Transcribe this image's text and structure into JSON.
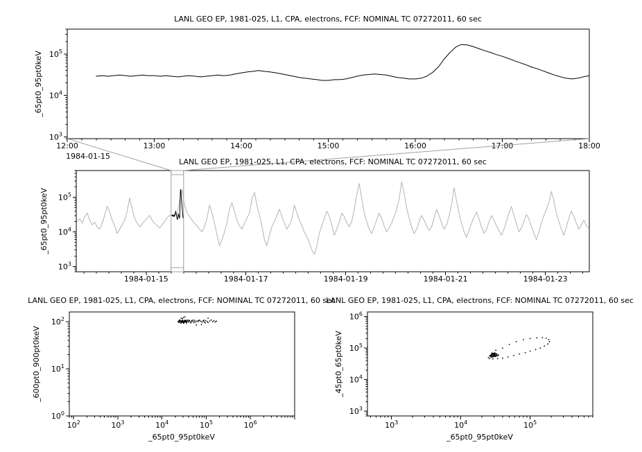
{
  "figure": {
    "background": "#ffffff",
    "foreground": "#000000",
    "context_line_color": "#b3b3b3",
    "zoom_box_color": "#a0a0a0"
  },
  "chart_data": [
    {
      "id": "top",
      "type": "line",
      "title": "LANL GEO EP, 1981-025, L1, CPA, electrons, FCF: NOMINAL TC 07272011, 60 sec",
      "ylabel": "_65pt0_95pt0keV",
      "xlabel": "",
      "x_axis": {
        "type": "linear",
        "range": [
          12,
          18
        ],
        "minor_step": 0.16667,
        "context_label": "1984-01-15",
        "ticks": [
          {
            "v": 12,
            "label": "12:00"
          },
          {
            "v": 13,
            "label": "13:00"
          },
          {
            "v": 14,
            "label": "14:00"
          },
          {
            "v": 15,
            "label": "15:00"
          },
          {
            "v": 16,
            "label": "16:00"
          },
          {
            "v": 17,
            "label": "17:00"
          },
          {
            "v": 18,
            "label": "18:00"
          }
        ]
      },
      "y_axis": {
        "type": "log",
        "range": [
          900,
          400000
        ],
        "ticks": [
          1000,
          10000,
          100000
        ]
      },
      "series": [
        {
          "name": "zoom-series",
          "color": "#000000",
          "x": [
            12.33,
            12.4,
            12.47,
            12.53,
            12.6,
            12.67,
            12.73,
            12.8,
            12.87,
            12.93,
            13.0,
            13.07,
            13.13,
            13.2,
            13.27,
            13.33,
            13.4,
            13.47,
            13.53,
            13.6,
            13.67,
            13.73,
            13.8,
            13.87,
            13.93,
            14.0,
            14.07,
            14.13,
            14.2,
            14.27,
            14.33,
            14.4,
            14.47,
            14.53,
            14.6,
            14.67,
            14.73,
            14.8,
            14.87,
            14.93,
            15.0,
            15.07,
            15.13,
            15.2,
            15.27,
            15.33,
            15.4,
            15.47,
            15.53,
            15.6,
            15.67,
            15.73,
            15.8,
            15.87,
            15.93,
            16.0,
            16.07,
            16.13,
            16.2,
            16.27,
            16.33,
            16.4,
            16.47,
            16.53,
            16.6,
            16.67,
            16.73,
            16.8,
            16.87,
            16.93,
            17.0,
            17.07,
            17.13,
            17.2,
            17.27,
            17.33,
            17.4,
            17.47,
            17.53,
            17.6,
            17.67,
            17.73,
            17.8,
            17.87,
            17.93,
            18.0
          ],
          "y": [
            29000,
            30000,
            29000,
            30000,
            31000,
            30000,
            29000,
            30000,
            31000,
            30000,
            30000,
            29000,
            30000,
            29000,
            28000,
            29000,
            30000,
            29000,
            28000,
            29000,
            30000,
            31000,
            30000,
            31000,
            33000,
            35000,
            37000,
            38000,
            40000,
            38000,
            37000,
            35000,
            33000,
            31000,
            29000,
            27000,
            26000,
            25000,
            24000,
            23000,
            23000,
            24000,
            24000,
            25000,
            27000,
            29000,
            31000,
            32000,
            33000,
            32000,
            31000,
            29000,
            27000,
            26000,
            25000,
            25000,
            26000,
            29000,
            36000,
            50000,
            75000,
            110000,
            150000,
            170000,
            165000,
            150000,
            135000,
            120000,
            108000,
            97000,
            88000,
            78000,
            70000,
            62000,
            55000,
            49000,
            44000,
            39000,
            35000,
            31000,
            28000,
            26000,
            25000,
            26000,
            28000,
            30000
          ]
        }
      ]
    },
    {
      "id": "context",
      "type": "line",
      "title": "LANL GEO EP, 1981-025, L1, CPA, electrons, FCF: NOMINAL TC 07272011, 60 sec",
      "ylabel": "_65pt0_95pt0keV",
      "xlabel": "",
      "x_axis": {
        "type": "linear",
        "range": [
          13.6,
          23.88
        ],
        "minor_step": 0.25,
        "ticks": [
          {
            "v": 15,
            "label": "1984-01-15"
          },
          {
            "v": 17,
            "label": "1984-01-17"
          },
          {
            "v": 19,
            "label": "1984-01-19"
          },
          {
            "v": 21,
            "label": "1984-01-21"
          },
          {
            "v": 23,
            "label": "1984-01-23"
          }
        ]
      },
      "y_axis": {
        "type": "log",
        "range": [
          700,
          600000
        ],
        "ticks": [
          1000,
          10000,
          100000
        ]
      },
      "zoom_box": {
        "x_range": [
          15.5,
          15.75
        ]
      },
      "series": [
        {
          "name": "context-series",
          "color": "#b3b3b3",
          "x_start": 13.62,
          "x_step": 0.05,
          "y": [
            20000,
            24000,
            18000,
            28000,
            35000,
            22000,
            16000,
            19000,
            14000,
            12000,
            18000,
            30000,
            55000,
            38000,
            22000,
            15000,
            9000,
            12000,
            16000,
            22000,
            40000,
            95000,
            45000,
            25000,
            18000,
            14000,
            17000,
            21000,
            25000,
            30000,
            22000,
            18000,
            15000,
            13000,
            16000,
            20000,
            26000,
            30000,
            30000,
            33000,
            31000,
            80000,
            170000,
            60000,
            35000,
            28000,
            22000,
            18000,
            15000,
            12000,
            10000,
            14000,
            25000,
            60000,
            35000,
            18000,
            8000,
            4000,
            6000,
            10000,
            18000,
            45000,
            70000,
            40000,
            22000,
            15000,
            12000,
            18000,
            25000,
            35000,
            90000,
            140000,
            60000,
            30000,
            15000,
            6000,
            4000,
            8000,
            14000,
            20000,
            30000,
            45000,
            28000,
            18000,
            12000,
            16000,
            24000,
            60000,
            35000,
            22000,
            15000,
            10000,
            7000,
            5000,
            3000,
            2200,
            4000,
            9000,
            15000,
            25000,
            40000,
            28000,
            16000,
            8000,
            12000,
            20000,
            35000,
            28000,
            18000,
            14000,
            20000,
            45000,
            120000,
            250000,
            90000,
            35000,
            20000,
            12000,
            9000,
            14000,
            22000,
            35000,
            25000,
            15000,
            10000,
            13000,
            18000,
            28000,
            45000,
            90000,
            280000,
            130000,
            50000,
            25000,
            14000,
            9000,
            12000,
            20000,
            30000,
            22000,
            15000,
            11000,
            14000,
            25000,
            45000,
            30000,
            18000,
            12000,
            16000,
            28000,
            60000,
            190000,
            80000,
            35000,
            18000,
            10000,
            7000,
            11000,
            18000,
            26000,
            38000,
            24000,
            14000,
            9000,
            12000,
            19000,
            30000,
            22000,
            15000,
            11000,
            8000,
            12000,
            20000,
            35000,
            55000,
            30000,
            17000,
            10000,
            13000,
            20000,
            32000,
            24000,
            14000,
            9000,
            6000,
            10000,
            18000,
            30000,
            45000,
            70000,
            150000,
            80000,
            35000,
            20000,
            12000,
            8000,
            14000,
            25000,
            40000,
            28000,
            18000,
            12000,
            16000,
            22000,
            15000,
            13000
          ]
        },
        {
          "name": "highlight-series",
          "color": "#000000",
          "derive_from": "top",
          "x_scale": 0.0416667,
          "x_offset": 15
        }
      ]
    },
    {
      "id": "scatter-left",
      "type": "scatter",
      "title": "LANL GEO EP, 1981-025, L1, CPA, electrons, FCF: NOMINAL TC 07272011, 60 sec",
      "ylabel": "_600pt0_900pt0keV",
      "xlabel": "_65pt0_95pt0keV",
      "x_axis": {
        "type": "log",
        "range": [
          80,
          10000000
        ],
        "ticks": [
          100,
          1000,
          10000,
          100000,
          1000000
        ]
      },
      "y_axis": {
        "type": "log",
        "range": [
          1,
          160
        ],
        "ticks": [
          1,
          10,
          100
        ]
      },
      "points": [
        [
          23000,
          100
        ],
        [
          24000,
          105
        ],
        [
          24500,
          98
        ],
        [
          25000,
          102
        ],
        [
          25500,
          108
        ],
        [
          26000,
          96
        ],
        [
          26500,
          103
        ],
        [
          27000,
          118
        ],
        [
          27500,
          99
        ],
        [
          28000,
          104
        ],
        [
          28500,
          97
        ],
        [
          29000,
          106
        ],
        [
          29500,
          101
        ],
        [
          30000,
          95
        ],
        [
          30000,
          103
        ],
        [
          30500,
          122
        ],
        [
          31000,
          100
        ],
        [
          31500,
          97
        ],
        [
          32000,
          104
        ],
        [
          32500,
          99
        ],
        [
          33000,
          107
        ],
        [
          33500,
          102
        ],
        [
          34000,
          98
        ],
        [
          35000,
          105
        ],
        [
          35500,
          100
        ],
        [
          36000,
          96
        ],
        [
          37000,
          103
        ],
        [
          38000,
          108
        ],
        [
          39000,
          101
        ],
        [
          40000,
          99
        ],
        [
          42000,
          104
        ],
        [
          44000,
          97
        ],
        [
          46000,
          102
        ],
        [
          48000,
          106
        ],
        [
          50000,
          100
        ],
        [
          53000,
          95
        ],
        [
          55000,
          103
        ],
        [
          58000,
          98
        ],
        [
          62000,
          104
        ],
        [
          66000,
          100
        ],
        [
          70000,
          107
        ],
        [
          75000,
          102
        ],
        [
          80000,
          97
        ],
        [
          85000,
          103
        ],
        [
          90000,
          99
        ],
        [
          97000,
          105
        ],
        [
          105000,
          101
        ],
        [
          110000,
          96
        ],
        [
          120000,
          103
        ],
        [
          130000,
          108
        ],
        [
          140000,
          100
        ],
        [
          150000,
          104
        ],
        [
          160000,
          98
        ],
        [
          170000,
          102
        ],
        [
          110000,
          118
        ],
        [
          95000,
          94
        ],
        [
          88000,
          107
        ],
        [
          78000,
          86
        ],
        [
          68000,
          105
        ],
        [
          60000,
          85
        ],
        [
          52000,
          108
        ],
        [
          45000,
          94
        ],
        [
          41000,
          106
        ],
        [
          36000,
          93
        ],
        [
          33000,
          126
        ],
        [
          31000,
          92
        ],
        [
          29000,
          115
        ],
        [
          27000,
          93
        ],
        [
          25000,
          104
        ],
        [
          24000,
          96
        ]
      ]
    },
    {
      "id": "scatter-right",
      "type": "scatter",
      "title": "LANL GEO EP, 1981-025, L1, CPA, electrons, FCF: NOMINAL TC 07272011, 60 sec",
      "ylabel": "_45pt0_65pt0keV",
      "xlabel": "_65pt0_95pt0keV",
      "x_axis": {
        "type": "log",
        "range": [
          450,
          800000
        ],
        "ticks": [
          1000,
          10000,
          100000
        ]
      },
      "y_axis": {
        "type": "log",
        "range": [
          700,
          1400000
        ],
        "ticks": [
          1000,
          10000,
          100000,
          1000000
        ]
      },
      "points": [
        [
          28000,
          70000
        ],
        [
          32000,
          85000
        ],
        [
          40000,
          100000
        ],
        [
          50000,
          130000
        ],
        [
          63000,
          160000
        ],
        [
          80000,
          185000
        ],
        [
          100000,
          200000
        ],
        [
          125000,
          210000
        ],
        [
          150000,
          215000
        ],
        [
          170000,
          205000
        ],
        [
          185000,
          185000
        ],
        [
          190000,
          160000
        ],
        [
          180000,
          135000
        ],
        [
          160000,
          115000
        ],
        [
          140000,
          100000
        ],
        [
          120000,
          90000
        ],
        [
          100000,
          80000
        ],
        [
          85000,
          72000
        ],
        [
          70000,
          65000
        ],
        [
          58000,
          58000
        ],
        [
          48000,
          52000
        ],
        [
          40000,
          48000
        ],
        [
          34000,
          46000
        ],
        [
          29000,
          45000
        ],
        [
          26000,
          46000
        ],
        [
          25000,
          50000
        ],
        [
          26000,
          57000
        ],
        [
          27500,
          63000
        ],
        [
          27000,
          52000
        ],
        [
          28000,
          55000
        ],
        [
          29000,
          58000
        ],
        [
          30000,
          54000
        ],
        [
          31000,
          60000
        ],
        [
          30000,
          65000
        ],
        [
          29000,
          62000
        ],
        [
          28000,
          59000
        ],
        [
          27000,
          56000
        ],
        [
          29000,
          52000
        ],
        [
          31000,
          55000
        ],
        [
          32000,
          58000
        ],
        [
          33000,
          62000
        ],
        [
          32000,
          66000
        ],
        [
          31000,
          70000
        ],
        [
          30000,
          68000
        ],
        [
          29000,
          66000
        ],
        [
          28000,
          63000
        ],
        [
          30000,
          60000
        ],
        [
          32000,
          54000
        ],
        [
          34000,
          57000
        ],
        [
          35000,
          60000
        ],
        [
          33000,
          65000
        ],
        [
          31000,
          64000
        ],
        [
          30000,
          57000
        ],
        [
          28000,
          52000
        ],
        [
          27000,
          58000
        ],
        [
          29000,
          68000
        ],
        [
          31000,
          66000
        ],
        [
          33000,
          59000
        ]
      ]
    }
  ]
}
